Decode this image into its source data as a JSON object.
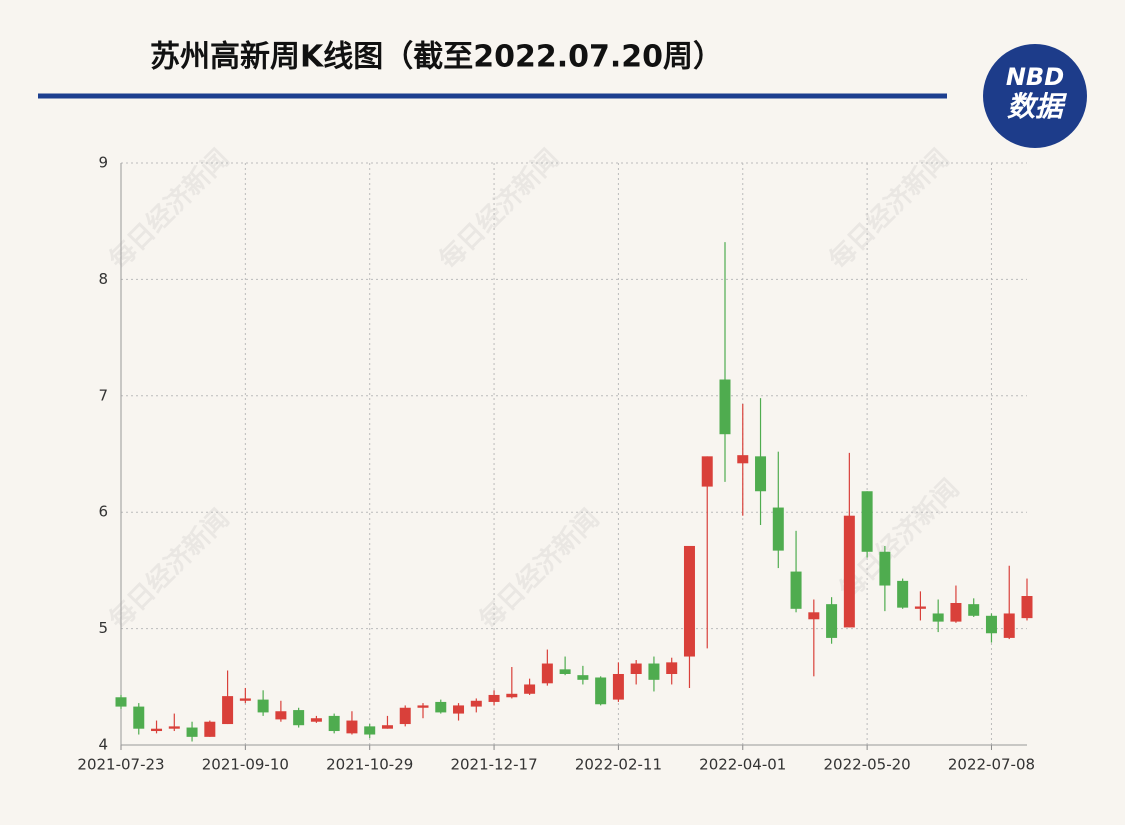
{
  "chart_data": {
    "type": "candlestick",
    "title": "苏州高新周K线图（截至2022.07.20周）",
    "logo": {
      "top": "NBD",
      "bottom": "数据"
    },
    "watermark": "每日经济新闻",
    "categories": [
      "2021-07-23",
      null,
      null,
      null,
      null,
      null,
      null,
      "2021-09-10",
      null,
      null,
      null,
      null,
      null,
      null,
      "2021-10-29",
      null,
      null,
      null,
      null,
      null,
      null,
      "2021-12-17",
      null,
      null,
      null,
      null,
      null,
      null,
      "2022-02-11",
      null,
      null,
      null,
      null,
      null,
      null,
      "2022-04-01",
      null,
      null,
      null,
      null,
      null,
      null,
      "2022-05-20",
      null,
      null,
      null,
      null,
      null,
      null,
      "2022-07-08",
      null,
      null
    ],
    "open": [
      4.41,
      4.33,
      4.12,
      4.14,
      4.15,
      4.07,
      4.18,
      4.38,
      4.39,
      4.22,
      4.3,
      4.2,
      4.25,
      4.1,
      4.16,
      4.14,
      4.18,
      4.32,
      4.37,
      4.27,
      4.33,
      4.37,
      4.41,
      4.44,
      4.53,
      4.65,
      4.6,
      4.58,
      4.39,
      4.61,
      4.7,
      4.61,
      4.76,
      6.22,
      7.14,
      6.42,
      6.48,
      6.04,
      5.49,
      5.08,
      5.21,
      5.01,
      6.18,
      5.66,
      5.41,
      5.17,
      5.13,
      5.06,
      5.21,
      5.11,
      4.92,
      5.09
    ],
    "high": [
      4.43,
      4.36,
      4.21,
      4.27,
      4.2,
      4.21,
      4.64,
      4.49,
      4.47,
      4.38,
      4.32,
      4.25,
      4.27,
      4.29,
      4.18,
      4.25,
      4.34,
      4.36,
      4.39,
      4.36,
      4.4,
      4.47,
      4.67,
      4.57,
      4.82,
      4.76,
      4.68,
      4.59,
      4.71,
      4.73,
      4.76,
      4.75,
      5.71,
      6.48,
      8.32,
      6.93,
      6.98,
      6.52,
      5.84,
      5.25,
      5.27,
      6.51,
      6.18,
      5.71,
      5.43,
      5.32,
      5.25,
      5.37,
      5.26,
      5.13,
      5.54,
      5.43
    ],
    "low": [
      4.31,
      4.09,
      4.1,
      4.12,
      4.03,
      4.07,
      4.18,
      4.36,
      4.25,
      4.2,
      4.15,
      4.19,
      4.1,
      4.09,
      4.06,
      4.14,
      4.16,
      4.23,
      4.27,
      4.21,
      4.28,
      4.34,
      4.4,
      4.43,
      4.51,
      4.6,
      4.52,
      4.34,
      4.37,
      4.52,
      4.46,
      4.52,
      4.49,
      4.83,
      6.26,
      5.97,
      5.89,
      5.52,
      5.14,
      4.59,
      4.87,
      5.01,
      5.61,
      5.15,
      5.17,
      5.07,
      4.97,
      5.05,
      5.1,
      4.88,
      4.91,
      5.07
    ],
    "close": [
      4.33,
      4.14,
      4.14,
      4.16,
      4.07,
      4.2,
      4.42,
      4.4,
      4.28,
      4.29,
      4.17,
      4.23,
      4.12,
      4.21,
      4.09,
      4.17,
      4.32,
      4.34,
      4.28,
      4.34,
      4.38,
      4.43,
      4.44,
      4.52,
      4.7,
      4.61,
      4.56,
      4.35,
      4.61,
      4.7,
      4.56,
      4.71,
      5.71,
      6.48,
      6.67,
      6.49,
      6.18,
      5.67,
      5.17,
      5.14,
      4.92,
      5.97,
      5.66,
      5.37,
      5.18,
      5.19,
      5.06,
      5.22,
      5.11,
      4.96,
      5.13,
      5.28
    ],
    "up_color": "#d9403a",
    "down_color": "#4fac4f",
    "ylim": [
      4,
      9
    ],
    "yticks": [
      4,
      5,
      6,
      7,
      8,
      9
    ],
    "grid": true
  }
}
